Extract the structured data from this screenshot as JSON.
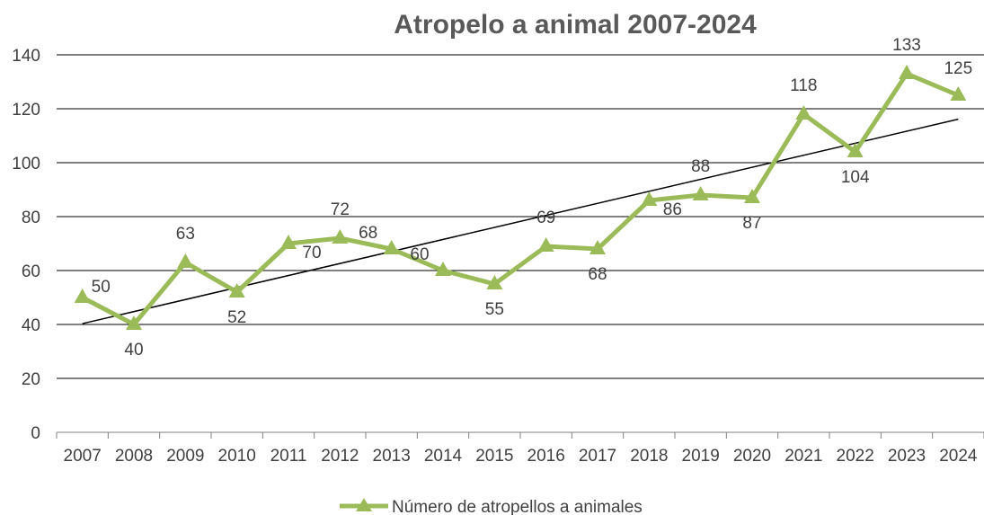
{
  "chart_data": {
    "type": "line",
    "title": "Atropelo a animal 2007-2024",
    "xlabel": "",
    "ylabel": "",
    "categories": [
      "2007",
      "2008",
      "2009",
      "2010",
      "2011",
      "2012",
      "2013",
      "2014",
      "2015",
      "2016",
      "2017",
      "2018",
      "2019",
      "2020",
      "2021",
      "2022",
      "2023",
      "2024"
    ],
    "series": [
      {
        "name": "Número de atropellos a animales",
        "values": [
          50,
          40,
          63,
          52,
          70,
          72,
          68,
          60,
          55,
          69,
          68,
          86,
          88,
          87,
          118,
          104,
          133,
          125
        ],
        "color": "#9BBB59",
        "marker": "triangle"
      }
    ],
    "trendline": {
      "type": "linear",
      "color": "#000000"
    },
    "ylim": [
      0,
      140
    ],
    "yticks": [
      0,
      20,
      40,
      60,
      80,
      100,
      120,
      140
    ],
    "grid": "horizontal",
    "legend": "bottom",
    "data_labels": true
  }
}
